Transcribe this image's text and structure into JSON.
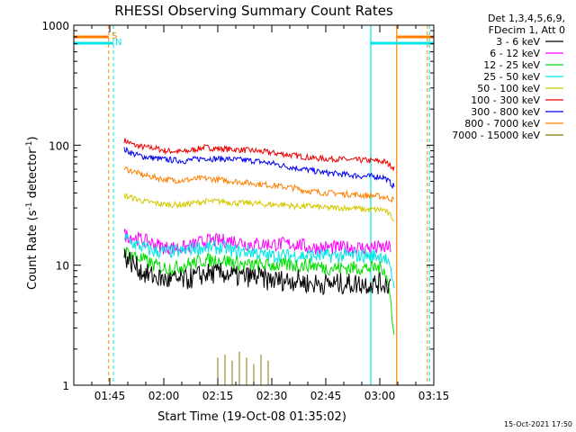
{
  "chart_data": {
    "type": "line",
    "title": "RHESSI Observing Summary Count Rates",
    "xlabel": "Start Time (19-Oct-08 01:35:02)",
    "ylabel": "Count Rate (s⁻¹ detector⁻¹)",
    "ylabel_parts": {
      "pre": "Count Rate (s",
      "sup1": "-1",
      "mid": " detector",
      "sup2": "-1",
      "post": ")"
    },
    "y_scale": "log",
    "ylim": [
      1,
      1000
    ],
    "xlim_minutes": [
      95,
      195
    ],
    "x_ticks": [
      {
        "label": "01:45",
        "minutes": 105
      },
      {
        "label": "02:00",
        "minutes": 120
      },
      {
        "label": "02:15",
        "minutes": 135
      },
      {
        "label": "02:30",
        "minutes": 150
      },
      {
        "label": "02:45",
        "minutes": 165
      },
      {
        "label": "03:00",
        "minutes": 180
      },
      {
        "label": "03:15",
        "minutes": 195
      }
    ],
    "y_ticks": [
      {
        "label": "1",
        "value": 1
      },
      {
        "label": "10",
        "value": 10
      },
      {
        "label": "100",
        "value": 100
      },
      {
        "label": "1000",
        "value": 1000
      }
    ],
    "legend": {
      "placement": "right",
      "header": [
        "Det 1,3,4,5,6,9,",
        "FDecim 1, Att 0"
      ],
      "entries": [
        {
          "label": "3 - 6 keV",
          "color": "#000000"
        },
        {
          "label": "6 - 12 keV",
          "color": "#ff00ff"
        },
        {
          "label": "12 - 25 keV",
          "color": "#00dd00"
        },
        {
          "label": "25 - 50 keV",
          "color": "#00e5e5"
        },
        {
          "label": "50 - 100 keV",
          "color": "#d4c800"
        },
        {
          "label": "100 - 300 keV",
          "color": "#ee0000"
        },
        {
          "label": "300 - 800 keV",
          "color": "#0000ee"
        },
        {
          "label": "800 - 7000 keV",
          "color": "#ff8000"
        },
        {
          "label": "7000 - 15000 keV",
          "color": "#8b7500"
        }
      ]
    },
    "series": [
      {
        "name": "100 - 300 keV",
        "color": "#ee0000",
        "start_minute": 109,
        "end_minute": 184,
        "values": [
          110,
          100,
          96,
          95,
          90,
          89,
          88,
          92,
          96,
          94,
          93,
          92,
          91,
          90,
          88,
          86,
          84,
          82,
          80,
          78,
          77,
          77,
          76,
          75,
          75,
          74,
          73,
          65
        ]
      },
      {
        "name": "300 - 800 keV",
        "color": "#0000ee",
        "start_minute": 109,
        "end_minute": 184,
        "values": [
          92,
          84,
          80,
          78,
          76,
          75,
          74,
          76,
          78,
          77,
          77,
          76,
          75,
          74,
          72,
          70,
          67,
          65,
          63,
          61,
          59,
          58,
          57,
          56,
          55,
          55,
          54,
          45
        ]
      },
      {
        "name": "800 - 7000 keV",
        "color": "#ff8000",
        "start_minute": 109,
        "end_minute": 184,
        "values": [
          64,
          60,
          56,
          54,
          52,
          51,
          51,
          52,
          53,
          52,
          51,
          50,
          49,
          48,
          47,
          46,
          45,
          44,
          42,
          41,
          40,
          40,
          39,
          39,
          38,
          38,
          37,
          35
        ]
      },
      {
        "name": "50 - 100 keV",
        "color": "#d4c800",
        "start_minute": 109,
        "end_minute": 184,
        "values": [
          38,
          36,
          34,
          33,
          32,
          32,
          32,
          33,
          34,
          34,
          34,
          33,
          33,
          33,
          32,
          32,
          32,
          31,
          31,
          31,
          30,
          30,
          30,
          30,
          29,
          29,
          29,
          24
        ]
      },
      {
        "name": "6 - 12 keV",
        "color": "#ff00ff",
        "start_minute": 109,
        "end_minute": 183,
        "values": [
          18,
          17,
          16,
          15,
          14,
          14,
          14,
          15,
          16,
          16,
          16,
          16,
          15,
          15,
          15,
          15,
          15,
          15,
          14,
          14,
          14,
          14,
          14,
          14,
          14,
          14,
          14
        ]
      },
      {
        "name": "25 - 50 keV",
        "color": "#00e5e5",
        "start_minute": 109,
        "end_minute": 184,
        "values": [
          17,
          15,
          14,
          13,
          13,
          13,
          13,
          14,
          14,
          14,
          14,
          13,
          13,
          13,
          12,
          12,
          12,
          12,
          12,
          12,
          12,
          12,
          12,
          12,
          12,
          12,
          12,
          7
        ]
      },
      {
        "name": "12 - 25 keV",
        "color": "#00dd00",
        "start_minute": 109,
        "end_minute": 184,
        "values": [
          13,
          12,
          11,
          10,
          9.5,
          9.5,
          10,
          10.5,
          11,
          11,
          11,
          10.5,
          10,
          10,
          10,
          10,
          10,
          10,
          10,
          10,
          9.5,
          9.5,
          9.5,
          9.5,
          9.5,
          9.5,
          9.5,
          2.5
        ]
      },
      {
        "name": "3 - 6 keV",
        "color": "#000000",
        "start_minute": 109,
        "end_minute": 183,
        "values": [
          12,
          10,
          8.5,
          8,
          7.5,
          7.5,
          7.5,
          8,
          8.5,
          8.5,
          8.5,
          8,
          8,
          8,
          7.5,
          7.5,
          7.5,
          7.5,
          7,
          7,
          7,
          7,
          7,
          7,
          7,
          7,
          7
        ]
      },
      {
        "name": "7000 - 15000 keV",
        "color": "#8b7500",
        "start_minute": 135,
        "end_minute": 149,
        "values": [
          1.7,
          1.0,
          1.8,
          1.0,
          1.6,
          1.0,
          1.9,
          1.0,
          1.7,
          1.0,
          1.5,
          1.0,
          1.8,
          1.0,
          1.6
        ]
      }
    ],
    "state_markers": [
      {
        "label": "S",
        "color": "#ff8000",
        "minute": 105
      },
      {
        "label": "N",
        "color": "#00e5e5",
        "minute": 106
      }
    ],
    "grid": false
  },
  "timestamp": "15-Oct-2021 17:50"
}
